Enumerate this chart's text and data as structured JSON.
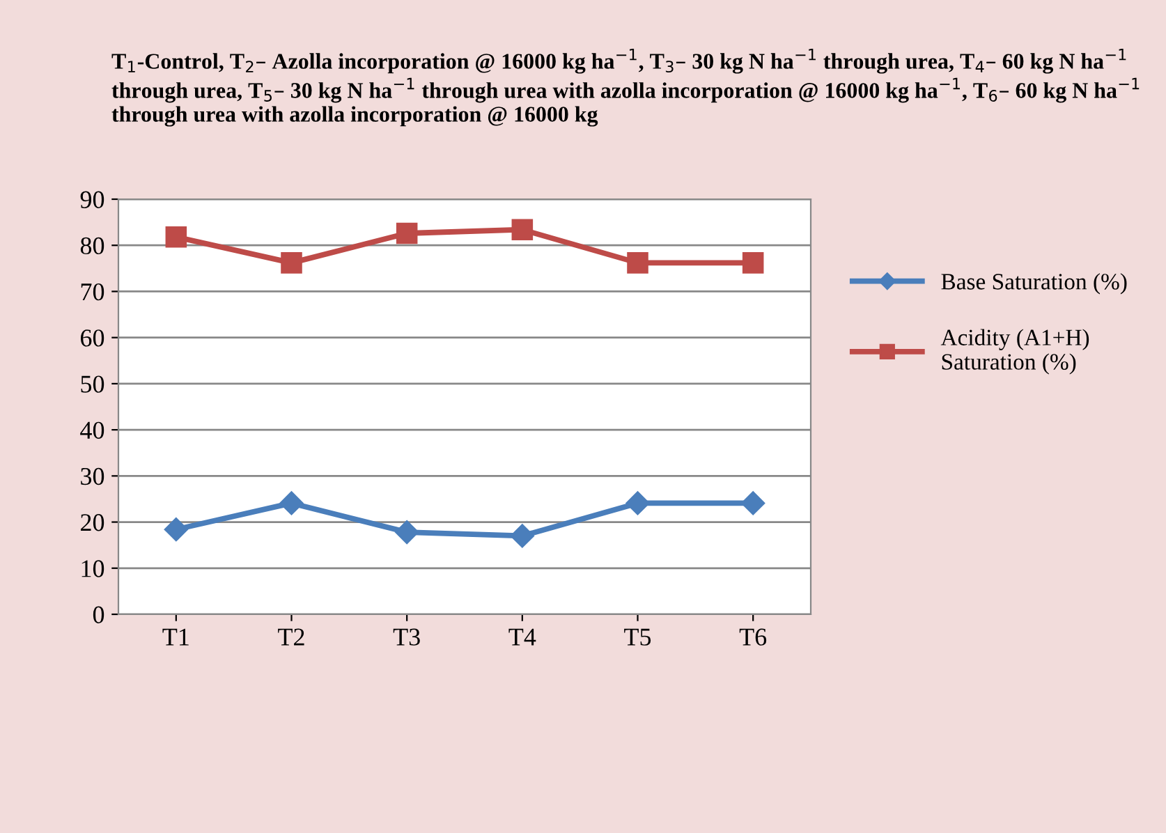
{
  "chart_data": {
    "type": "line",
    "title": "T$_{1}$-Control, T$_{2}$– Azolla incorporation @ 16000 kg ha$^{−1}$, T$_{3}$– 30 kg N ha$^{−1}$ through urea, T$_{4}$– 60 kg N ha$^{−1}$ through urea, T$_{5}$– 30 kg N ha$^{−1}$ through urea with azolla incorporation @ 16000 kg ha$^{−1}$, T$_{6}$– 60 kg N ha$^{−1}$ through urea with azolla incorporation @ 16000 kg",
    "categories": [
      "T1",
      "T2",
      "T3",
      "T4",
      "T5",
      "T6"
    ],
    "series": [
      {
        "name": "Base Saturation (%)",
        "color": "#4a7ebb",
        "marker": "diamond",
        "values": [
          18.4,
          24.1,
          17.8,
          17.0,
          24.1,
          24.1
        ]
      },
      {
        "name": "Acidity (A1+H)\nSaturation (%)",
        "color": "#be4b48",
        "marker": "square",
        "values": [
          81.8,
          76.2,
          82.6,
          83.4,
          76.2,
          76.2
        ]
      }
    ],
    "ylim": [
      0,
      90
    ],
    "yticks": [
      0,
      10,
      20,
      30,
      40,
      50,
      60,
      70,
      80,
      90
    ],
    "grid": "y",
    "legend": "right",
    "line_style": "solid"
  }
}
